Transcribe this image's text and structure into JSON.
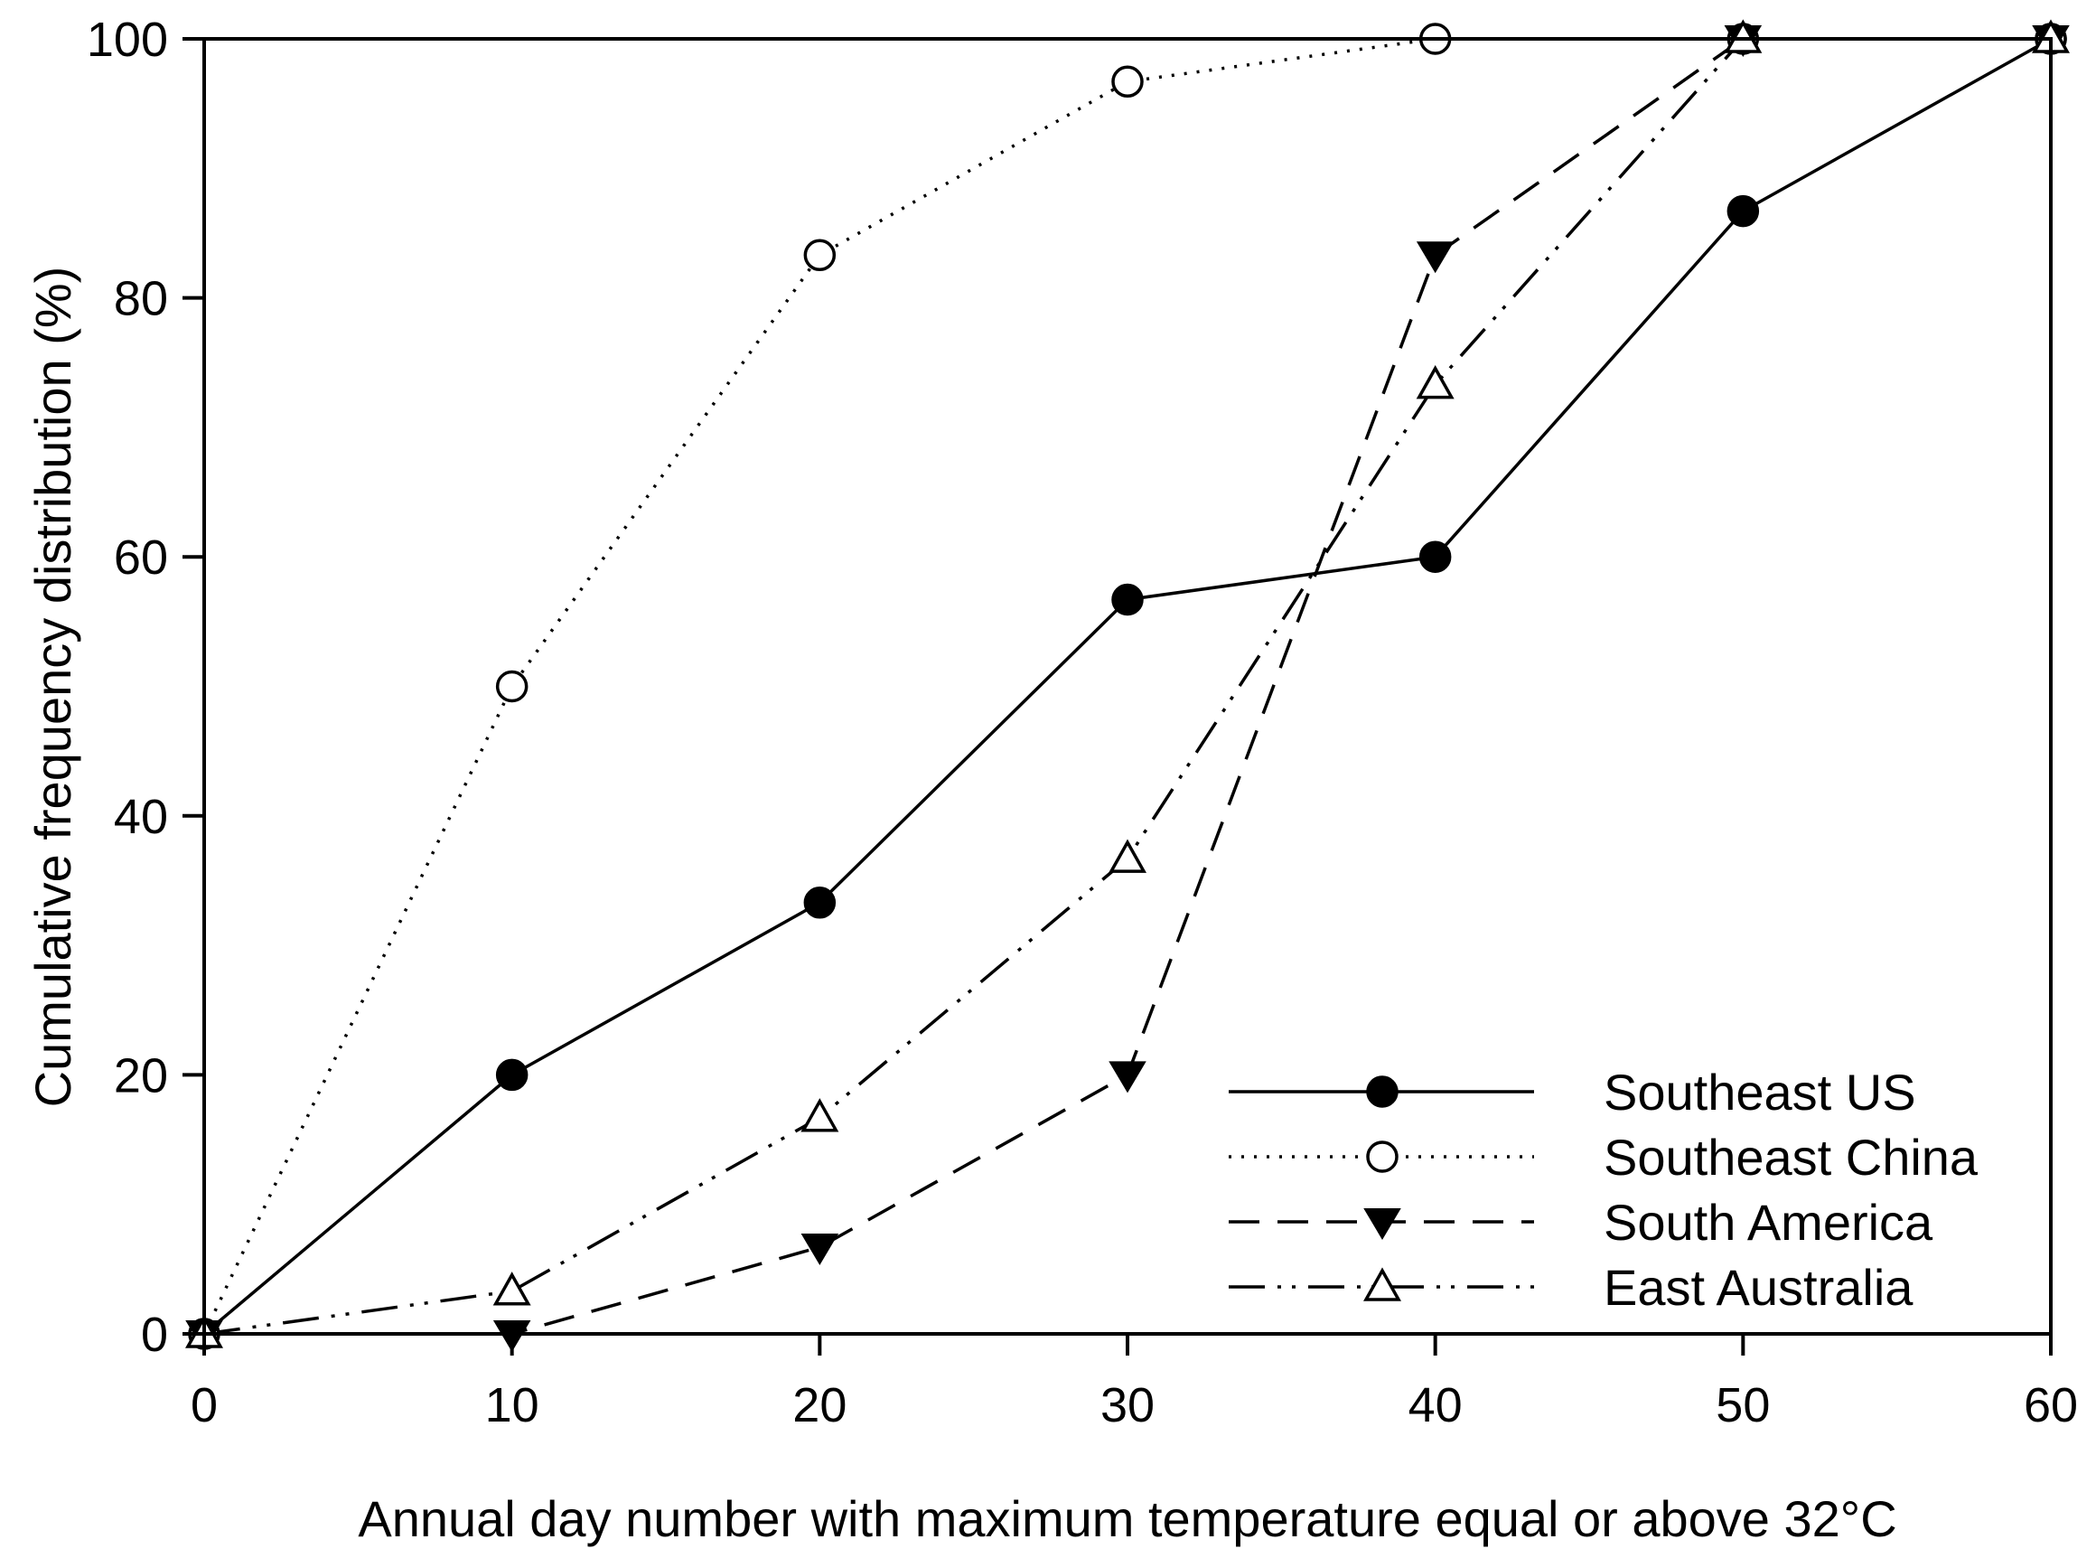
{
  "chart_data": {
    "type": "line",
    "title": "",
    "xlabel": "Annual day number with maximum temperature equal or above 32°C",
    "ylabel": "Cumulative frequency distribution (%)",
    "xlim": [
      0,
      60
    ],
    "ylim": [
      0,
      100
    ],
    "x_ticks": [
      0,
      10,
      20,
      30,
      40,
      50,
      60
    ],
    "y_ticks": [
      0,
      20,
      40,
      60,
      80,
      100
    ],
    "grid": false,
    "legend_position": "bottom-right",
    "series": [
      {
        "name": "Southeast US",
        "marker": "filled-circle",
        "line_style": "solid",
        "x": [
          0,
          10,
          20,
          30,
          40,
          50,
          60
        ],
        "y": [
          0,
          20,
          33.3,
          56.7,
          60,
          86.7,
          100
        ]
      },
      {
        "name": "Southeast China",
        "marker": "open-circle",
        "line_style": "dotted",
        "x": [
          0,
          10,
          20,
          30,
          40,
          50,
          60
        ],
        "y": [
          0,
          50,
          83.3,
          96.7,
          100,
          100,
          100
        ]
      },
      {
        "name": "South America",
        "marker": "filled-triangle-down",
        "line_style": "dashed",
        "x": [
          0,
          10,
          20,
          30,
          40,
          50,
          60
        ],
        "y": [
          0,
          0,
          6.7,
          20,
          83.3,
          100,
          100
        ]
      },
      {
        "name": "East Australia",
        "marker": "open-triangle-up",
        "line_style": "dash-dot-dot",
        "x": [
          0,
          10,
          20,
          30,
          40,
          50,
          60
        ],
        "y": [
          0,
          3.3,
          16.7,
          36.7,
          73.3,
          100,
          100
        ]
      }
    ]
  }
}
